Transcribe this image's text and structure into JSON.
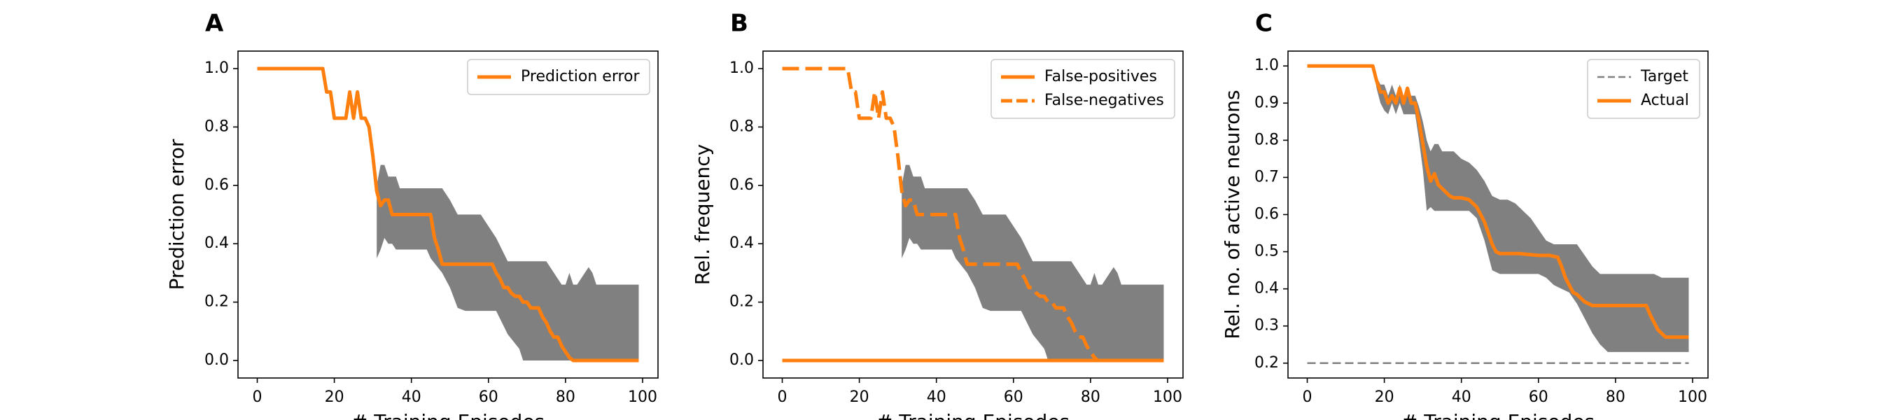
{
  "chart_data": [
    {
      "panel_label": "A",
      "type": "line",
      "xlabel": "# Training Episodes",
      "ylabel": "Prediction error",
      "xlim": [
        -5,
        104
      ],
      "ylim": [
        -0.06,
        1.06
      ],
      "xticks": [
        0,
        20,
        40,
        60,
        80,
        100
      ],
      "xtick_labels": [
        "0",
        "20",
        "40",
        "60",
        "80",
        "100"
      ],
      "yticks": [
        0.0,
        0.2,
        0.4,
        0.6,
        0.8,
        1.0
      ],
      "ytick_labels": [
        "0.0",
        "0.2",
        "0.4",
        "0.6",
        "0.8",
        "1.0"
      ],
      "grid": false,
      "legend": "top-right",
      "series": [
        {
          "name": "Prediction error",
          "style": "solid",
          "color": "#ff7f0e",
          "x": [
            0,
            17,
            18,
            19,
            20,
            23,
            24,
            25,
            26,
            27,
            28,
            29,
            30,
            31,
            32,
            33,
            34,
            35,
            36,
            37,
            38,
            39,
            40,
            41,
            42,
            43,
            44,
            45,
            46,
            47,
            48,
            55,
            60,
            61,
            62,
            63,
            64,
            65,
            66,
            67,
            68,
            69,
            70,
            71,
            72,
            73,
            74,
            75,
            76,
            77,
            78,
            79,
            80,
            81,
            82,
            99
          ],
          "y": [
            1.0,
            1.0,
            0.92,
            0.92,
            0.83,
            0.83,
            0.92,
            0.83,
            0.92,
            0.83,
            0.83,
            0.8,
            0.7,
            0.58,
            0.53,
            0.55,
            0.55,
            0.5,
            0.5,
            0.5,
            0.5,
            0.5,
            0.5,
            0.5,
            0.5,
            0.5,
            0.5,
            0.5,
            0.42,
            0.38,
            0.33,
            0.33,
            0.33,
            0.33,
            0.3,
            0.28,
            0.25,
            0.25,
            0.23,
            0.22,
            0.22,
            0.2,
            0.2,
            0.18,
            0.18,
            0.18,
            0.15,
            0.13,
            0.1,
            0.08,
            0.08,
            0.05,
            0.03,
            0.01,
            0.0,
            0.0
          ]
        }
      ],
      "bands": [
        {
          "color": "#808080",
          "x": [
            31,
            32,
            33,
            34,
            35,
            36,
            37,
            38,
            39,
            40,
            44,
            45,
            48,
            50,
            52,
            54,
            58,
            60,
            62,
            65,
            68,
            69,
            72,
            75,
            77,
            79,
            80,
            81,
            82,
            83,
            85,
            86,
            87,
            88,
            89,
            99
          ],
          "upper": [
            0.6,
            0.67,
            0.67,
            0.63,
            0.63,
            0.63,
            0.59,
            0.59,
            0.59,
            0.59,
            0.59,
            0.59,
            0.59,
            0.55,
            0.5,
            0.5,
            0.5,
            0.46,
            0.42,
            0.34,
            0.34,
            0.34,
            0.34,
            0.34,
            0.3,
            0.26,
            0.26,
            0.3,
            0.26,
            0.26,
            0.3,
            0.32,
            0.3,
            0.26,
            0.26,
            0.26
          ],
          "lower": [
            0.35,
            0.38,
            0.42,
            0.4,
            0.4,
            0.38,
            0.38,
            0.38,
            0.38,
            0.38,
            0.38,
            0.35,
            0.3,
            0.25,
            0.18,
            0.17,
            0.17,
            0.17,
            0.17,
            0.09,
            0.04,
            0.0,
            0.0,
            0.0,
            0.0,
            0.0,
            0.0,
            0.0,
            0.0,
            0.0,
            0.0,
            0.0,
            0.0,
            0.0,
            0.0,
            0.0
          ]
        }
      ]
    },
    {
      "panel_label": "B",
      "type": "line",
      "xlabel": "# Training Episodes",
      "ylabel": "Rel. frequency",
      "xlim": [
        -5,
        104
      ],
      "ylim": [
        -0.06,
        1.06
      ],
      "xticks": [
        0,
        20,
        40,
        60,
        80,
        100
      ],
      "xtick_labels": [
        "0",
        "20",
        "40",
        "60",
        "80",
        "100"
      ],
      "yticks": [
        0.0,
        0.2,
        0.4,
        0.6,
        0.8,
        1.0
      ],
      "ytick_labels": [
        "0.0",
        "0.2",
        "0.4",
        "0.6",
        "0.8",
        "1.0"
      ],
      "grid": false,
      "legend": "top-right",
      "series": [
        {
          "name": "False-positives",
          "style": "solid",
          "color": "#ff7f0e",
          "x": [
            0,
            99
          ],
          "y": [
            0.0,
            0.0
          ]
        },
        {
          "name": "False-negatives",
          "style": "dashed",
          "color": "#ff7f0e",
          "x": [
            0,
            17,
            18,
            19,
            20,
            23,
            24,
            25,
            26,
            27,
            28,
            29,
            30,
            31,
            32,
            33,
            34,
            35,
            36,
            37,
            38,
            39,
            40,
            41,
            42,
            43,
            44,
            45,
            46,
            47,
            48,
            55,
            60,
            61,
            62,
            63,
            64,
            65,
            66,
            67,
            68,
            69,
            70,
            71,
            72,
            73,
            74,
            75,
            76,
            77,
            78,
            79,
            80,
            81,
            82,
            99
          ],
          "y": [
            1.0,
            1.0,
            0.92,
            0.92,
            0.83,
            0.83,
            0.92,
            0.83,
            0.92,
            0.83,
            0.83,
            0.8,
            0.7,
            0.58,
            0.53,
            0.55,
            0.55,
            0.5,
            0.5,
            0.5,
            0.5,
            0.5,
            0.5,
            0.5,
            0.5,
            0.5,
            0.5,
            0.5,
            0.42,
            0.38,
            0.33,
            0.33,
            0.33,
            0.33,
            0.3,
            0.28,
            0.25,
            0.25,
            0.23,
            0.22,
            0.22,
            0.2,
            0.2,
            0.18,
            0.18,
            0.18,
            0.15,
            0.13,
            0.1,
            0.08,
            0.08,
            0.05,
            0.03,
            0.01,
            0.0,
            0.0
          ]
        }
      ],
      "bands": [
        {
          "color": "#808080",
          "x": [
            31,
            32,
            33,
            34,
            35,
            36,
            37,
            38,
            39,
            40,
            44,
            45,
            48,
            50,
            52,
            54,
            58,
            60,
            62,
            65,
            68,
            69,
            72,
            75,
            77,
            79,
            80,
            81,
            82,
            83,
            85,
            86,
            87,
            88,
            89,
            99
          ],
          "upper": [
            0.6,
            0.67,
            0.67,
            0.63,
            0.63,
            0.63,
            0.59,
            0.59,
            0.59,
            0.59,
            0.59,
            0.59,
            0.59,
            0.55,
            0.5,
            0.5,
            0.5,
            0.46,
            0.42,
            0.34,
            0.34,
            0.34,
            0.34,
            0.34,
            0.3,
            0.26,
            0.26,
            0.3,
            0.26,
            0.26,
            0.3,
            0.32,
            0.3,
            0.26,
            0.26,
            0.26
          ],
          "lower": [
            0.35,
            0.38,
            0.42,
            0.4,
            0.4,
            0.38,
            0.38,
            0.38,
            0.38,
            0.38,
            0.38,
            0.35,
            0.3,
            0.25,
            0.18,
            0.17,
            0.17,
            0.17,
            0.17,
            0.09,
            0.04,
            0.0,
            0.0,
            0.0,
            0.0,
            0.0,
            0.0,
            0.0,
            0.0,
            0.0,
            0.0,
            0.0,
            0.0,
            0.0,
            0.0,
            0.0
          ]
        }
      ]
    },
    {
      "panel_label": "C",
      "type": "line",
      "xlabel": "# Training Episodes",
      "ylabel": "Rel. no. of active neurons",
      "xlim": [
        -5,
        104
      ],
      "ylim": [
        0.16,
        1.04
      ],
      "xticks": [
        0,
        20,
        40,
        60,
        80,
        100
      ],
      "xtick_labels": [
        "0",
        "20",
        "40",
        "60",
        "80",
        "100"
      ],
      "yticks": [
        0.2,
        0.3,
        0.4,
        0.5,
        0.6,
        0.7,
        0.8,
        0.9,
        1.0
      ],
      "ytick_labels": [
        "0.2",
        "0.3",
        "0.4",
        "0.5",
        "0.6",
        "0.7",
        "0.8",
        "0.9",
        "1.0"
      ],
      "grid": false,
      "legend": "top-right",
      "series": [
        {
          "name": "Target",
          "style": "dashed-thin",
          "color": "#808080",
          "x": [
            0,
            99
          ],
          "y": [
            0.2,
            0.2
          ]
        },
        {
          "name": "Actual",
          "style": "solid",
          "color": "#ff7f0e",
          "x": [
            0,
            17,
            18,
            19,
            20,
            21,
            22,
            23,
            24,
            25,
            26,
            27,
            28,
            29,
            30,
            31,
            32,
            33,
            34,
            35,
            36,
            37,
            38,
            40,
            42,
            43,
            44,
            45,
            46,
            47,
            48,
            49,
            50,
            55,
            60,
            63,
            65,
            66,
            67,
            68,
            69,
            70,
            71,
            72,
            73,
            74,
            75,
            76,
            77,
            78,
            79,
            88,
            89,
            90,
            91,
            92,
            93,
            94,
            95,
            96,
            99
          ],
          "y": [
            1.0,
            1.0,
            0.96,
            0.93,
            0.93,
            0.9,
            0.92,
            0.9,
            0.94,
            0.9,
            0.94,
            0.9,
            0.9,
            0.85,
            0.79,
            0.73,
            0.69,
            0.71,
            0.68,
            0.67,
            0.66,
            0.65,
            0.645,
            0.645,
            0.64,
            0.63,
            0.62,
            0.6,
            0.58,
            0.55,
            0.52,
            0.5,
            0.495,
            0.495,
            0.49,
            0.49,
            0.485,
            0.46,
            0.43,
            0.41,
            0.39,
            0.385,
            0.375,
            0.365,
            0.36,
            0.355,
            0.355,
            0.355,
            0.355,
            0.355,
            0.355,
            0.355,
            0.33,
            0.31,
            0.29,
            0.28,
            0.27,
            0.27,
            0.27,
            0.27,
            0.27
          ]
        }
      ],
      "bands": [
        {
          "color": "#808080",
          "x": [
            17,
            18,
            19,
            20,
            21,
            22,
            23,
            24,
            25,
            26,
            27,
            28,
            29,
            30,
            31,
            32,
            33,
            34,
            35,
            36,
            38,
            40,
            42,
            44,
            46,
            48,
            50,
            52,
            54,
            56,
            58,
            60,
            62,
            64,
            66,
            68,
            70,
            72,
            74,
            76,
            78,
            80,
            82,
            86,
            88,
            90,
            92,
            94,
            96,
            99
          ],
          "upper": [
            1.0,
            0.97,
            0.95,
            0.95,
            0.92,
            0.95,
            0.92,
            0.95,
            0.92,
            0.92,
            0.92,
            0.92,
            0.89,
            0.85,
            0.8,
            0.77,
            0.79,
            0.79,
            0.77,
            0.77,
            0.77,
            0.75,
            0.74,
            0.72,
            0.69,
            0.65,
            0.64,
            0.64,
            0.63,
            0.61,
            0.59,
            0.56,
            0.53,
            0.52,
            0.52,
            0.52,
            0.52,
            0.49,
            0.46,
            0.44,
            0.44,
            0.44,
            0.44,
            0.44,
            0.44,
            0.44,
            0.43,
            0.43,
            0.43,
            0.43
          ],
          "lower": [
            1.0,
            0.94,
            0.9,
            0.88,
            0.87,
            0.9,
            0.87,
            0.9,
            0.87,
            0.87,
            0.87,
            0.87,
            0.8,
            0.72,
            0.61,
            0.62,
            0.61,
            0.61,
            0.61,
            0.61,
            0.61,
            0.61,
            0.61,
            0.59,
            0.53,
            0.45,
            0.44,
            0.44,
            0.44,
            0.44,
            0.44,
            0.44,
            0.43,
            0.41,
            0.4,
            0.39,
            0.36,
            0.32,
            0.28,
            0.25,
            0.23,
            0.23,
            0.23,
            0.23,
            0.23,
            0.23,
            0.23,
            0.23,
            0.23,
            0.23
          ]
        }
      ]
    }
  ]
}
